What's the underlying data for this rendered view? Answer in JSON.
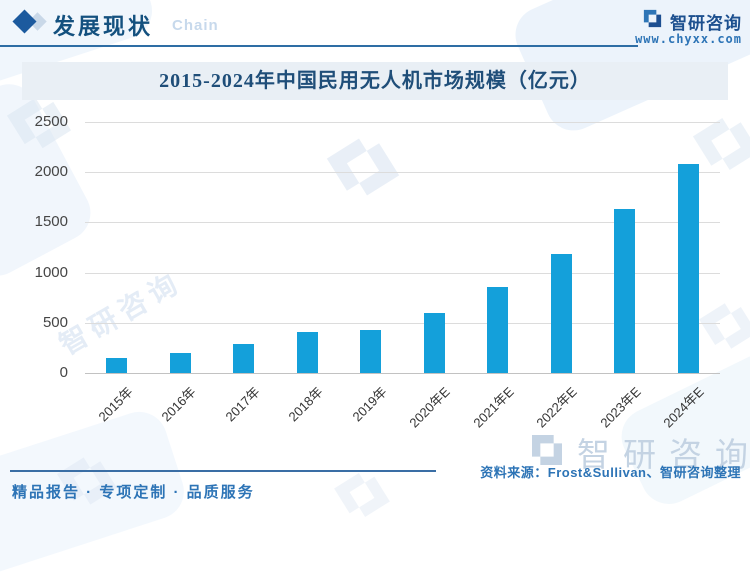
{
  "header": {
    "title": "发展现状",
    "watermark_text": "Chain",
    "brand": {
      "name": "智研咨询",
      "url": "www.chyxx.com"
    }
  },
  "icons": {
    "header_bullet": "diamond-icon",
    "brand_logo": "zhiyan-logo-glyph"
  },
  "chart_data": {
    "type": "bar",
    "title": "2015-2024年中国民用无人机市场规模（亿元）",
    "categories": [
      "2015年",
      "2016年",
      "2017年",
      "2018年",
      "2019年",
      "2020年E",
      "2021年E",
      "2022年E",
      "2023年E",
      "2024年E"
    ],
    "values": [
      145,
      200,
      290,
      405,
      430,
      600,
      855,
      1190,
      1635,
      2080
    ],
    "xlabel": "",
    "ylabel": "",
    "ylim": [
      0,
      2500
    ],
    "yticks": [
      0,
      500,
      1000,
      1500,
      2000,
      2500
    ],
    "grid": true,
    "legend": false,
    "bar_color": "#14a0da"
  },
  "footer": {
    "source": "资料来源：Frost&Sullivan、智研咨询整理",
    "tagline": "精品报告 · 专项定制 · 品质服务"
  },
  "watermark": {
    "brand": "智研咨询"
  },
  "colors": {
    "bar": "#14a0da",
    "accent_blue": "#2d74b6",
    "title_blue": "#1f4e79",
    "banner_bg": "#e9eff5",
    "header_rule": "#2e6da4"
  }
}
